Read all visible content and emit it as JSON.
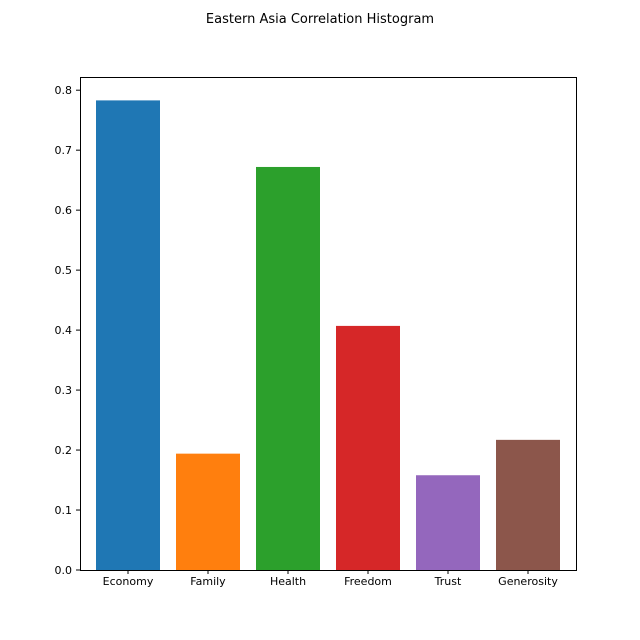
{
  "chart_data": {
    "type": "bar",
    "title": "Eastern Asia Correlation Histogram",
    "xlabel": "",
    "ylabel": "",
    "categories": [
      "Economy",
      "Family",
      "Health",
      "Freedom",
      "Trust",
      "Generosity"
    ],
    "values": [
      0.783,
      0.194,
      0.672,
      0.407,
      0.158,
      0.217
    ],
    "colors": [
      "#1f77b4",
      "#ff7f0e",
      "#2ca02c",
      "#d62728",
      "#9467bd",
      "#8c564b"
    ],
    "ylim": [
      0,
      0.822
    ],
    "yticks": [
      0.0,
      0.1,
      0.2,
      0.3,
      0.4,
      0.5,
      0.6,
      0.7,
      0.8
    ],
    "ytick_labels": [
      "0.0",
      "0.1",
      "0.2",
      "0.3",
      "0.4",
      "0.5",
      "0.6",
      "0.7",
      "0.8"
    ],
    "grid": false,
    "legend": "none"
  }
}
